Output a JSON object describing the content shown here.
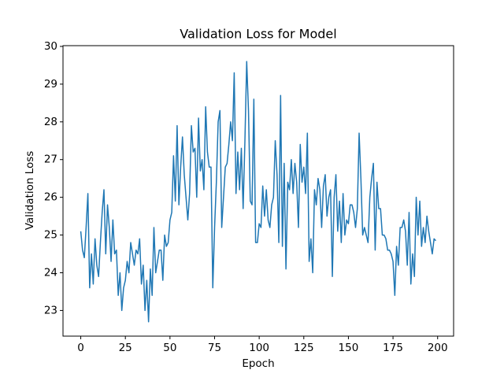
{
  "chart_data": {
    "type": "line",
    "title": "Validation Loss for Model",
    "x_label": "Epoch",
    "y_label": "Validation Loss",
    "color": "#1f77b4",
    "x": [
      0,
      1,
      2,
      3,
      4,
      5,
      6,
      7,
      8,
      9,
      10,
      11,
      12,
      13,
      14,
      15,
      16,
      17,
      18,
      19,
      20,
      21,
      22,
      23,
      24,
      25,
      26,
      27,
      28,
      29,
      30,
      31,
      32,
      33,
      34,
      35,
      36,
      37,
      38,
      39,
      40,
      41,
      42,
      43,
      44,
      45,
      46,
      47,
      48,
      49,
      50,
      51,
      52,
      53,
      54,
      55,
      56,
      57,
      58,
      59,
      60,
      61,
      62,
      63,
      64,
      65,
      66,
      67,
      68,
      69,
      70,
      71,
      72,
      73,
      74,
      75,
      76,
      77,
      78,
      79,
      80,
      81,
      82,
      83,
      84,
      85,
      86,
      87,
      88,
      89,
      90,
      91,
      92,
      93,
      94,
      95,
      96,
      97,
      98,
      99,
      100,
      101,
      102,
      103,
      104,
      105,
      106,
      107,
      108,
      109,
      110,
      111,
      112,
      113,
      114,
      115,
      116,
      117,
      118,
      119,
      120,
      121,
      122,
      123,
      124,
      125,
      126,
      127,
      128,
      129,
      130,
      131,
      132,
      133,
      134,
      135,
      136,
      137,
      138,
      139,
      140,
      141,
      142,
      143,
      144,
      145,
      146,
      147,
      148,
      149,
      150,
      151,
      152,
      153,
      154,
      155,
      156,
      157,
      158,
      159,
      160,
      161,
      162,
      163,
      164,
      165,
      166,
      167,
      168,
      169,
      170,
      171,
      172,
      173,
      174,
      175,
      176,
      177,
      178,
      179,
      180,
      181,
      182,
      183,
      184,
      185,
      186,
      187,
      188,
      189,
      190,
      191,
      192,
      193,
      194,
      195,
      196,
      197,
      198,
      199
    ],
    "values": [
      25.1,
      24.6,
      24.4,
      25.2,
      26.1,
      23.6,
      24.5,
      23.7,
      24.9,
      24.2,
      23.9,
      24.8,
      25.6,
      26.2,
      24.5,
      25.8,
      25.2,
      24.3,
      25.4,
      24.5,
      24.6,
      23.4,
      24.0,
      23.0,
      23.6,
      23.8,
      24.3,
      24.0,
      24.8,
      24.5,
      24.2,
      24.6,
      24.5,
      24.9,
      23.7,
      24.2,
      23.0,
      23.8,
      22.7,
      24.1,
      23.4,
      25.2,
      24.0,
      24.3,
      24.6,
      24.6,
      23.8,
      25.0,
      24.7,
      24.8,
      25.4,
      25.6,
      27.1,
      25.9,
      27.9,
      25.8,
      26.8,
      27.6,
      26.6,
      26.0,
      25.4,
      26.1,
      27.9,
      27.2,
      27.3,
      26.0,
      28.1,
      26.7,
      27.0,
      26.2,
      28.4,
      27.2,
      26.8,
      26.8,
      23.6,
      25.2,
      26.4,
      28.0,
      28.3,
      25.2,
      26.0,
      26.8,
      26.9,
      27.4,
      28.0,
      27.5,
      29.3,
      26.1,
      27.2,
      26.2,
      27.3,
      25.7,
      27.5,
      29.6,
      28.3,
      25.9,
      25.8,
      28.6,
      24.8,
      24.8,
      25.3,
      25.2,
      26.3,
      25.5,
      26.2,
      25.4,
      25.2,
      25.8,
      26.0,
      27.5,
      26.6,
      24.8,
      28.7,
      24.7,
      26.9,
      24.1,
      26.4,
      26.2,
      27.0,
      26.1,
      26.9,
      26.4,
      25.2,
      27.4,
      26.4,
      26.8,
      26.1,
      27.7,
      24.3,
      24.9,
      24.0,
      26.2,
      25.8,
      26.5,
      26.2,
      25.2,
      26.3,
      26.6,
      25.5,
      26.0,
      26.2,
      23.9,
      26.0,
      26.6,
      25.1,
      25.9,
      24.8,
      26.1,
      25.0,
      25.4,
      25.3,
      25.8,
      25.8,
      25.6,
      25.2,
      25.7,
      27.7,
      26.5,
      25.0,
      25.2,
      25.0,
      24.8,
      26.0,
      26.5,
      26.9,
      24.6,
      26.4,
      25.7,
      25.7,
      25.0,
      25.0,
      24.9,
      24.6,
      24.6,
      24.5,
      24.3,
      23.4,
      24.7,
      24.2,
      25.2,
      25.2,
      25.4,
      25.1,
      24.2,
      25.6,
      23.7,
      24.5,
      23.9,
      26.0,
      25.0,
      25.9,
      24.7,
      25.2,
      24.8,
      25.5,
      25.1,
      24.8,
      24.5,
      24.9,
      24.85
    ],
    "xlim": [
      -9.95,
      208.95
    ],
    "xticks": [
      0,
      25,
      50,
      75,
      100,
      125,
      150,
      175,
      200
    ],
    "ylim": [
      22.32,
      30.02
    ],
    "yticks": [
      23,
      24,
      25,
      26,
      27,
      28,
      29,
      30
    ]
  }
}
